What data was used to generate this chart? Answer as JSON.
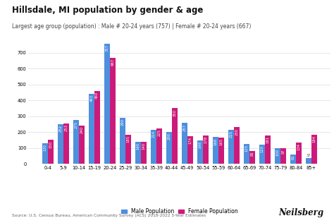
{
  "title": "Hillsdale, MI population by gender & age",
  "subtitle": "Largest age group (population) : Male # 20-24 years (757) | Female # 20-24 years (667)",
  "source": "Source: U.S. Census Bureau, American Community Survey (ACS) 2018-2022 5-Year Estimates",
  "categories": [
    "0-4",
    "5-9",
    "10-14",
    "15-19",
    "20-24",
    "25-29",
    "30-34",
    "35-39",
    "40-44",
    "45-49",
    "50-54",
    "55-59",
    "60-64",
    "65-69",
    "70-74",
    "75-79",
    "80-84",
    "85+"
  ],
  "male": [
    130,
    252,
    275,
    443,
    757,
    290,
    140,
    214,
    200,
    257,
    148,
    168,
    215,
    125,
    120,
    100,
    61,
    37
  ],
  "female": [
    150,
    253,
    240,
    460,
    667,
    185,
    140,
    225,
    350,
    174,
    178,
    165,
    230,
    83,
    181,
    97,
    134,
    184
  ],
  "male_color": "#4e8fde",
  "female_color": "#cc1a7a",
  "bg_color": "#ffffff",
  "grid_color": "#dddddd",
  "ylim": [
    0,
    800
  ],
  "yticks": [
    0,
    100,
    200,
    300,
    400,
    500,
    600,
    700
  ],
  "bar_width": 0.36,
  "title_fontsize": 8.5,
  "subtitle_fontsize": 5.5,
  "tick_fontsize": 4.8,
  "label_fontsize": 3.8,
  "legend_fontsize": 5.5,
  "source_fontsize": 4.2,
  "neilsberg_fontsize": 8.5,
  "brand": "Neilsberg"
}
